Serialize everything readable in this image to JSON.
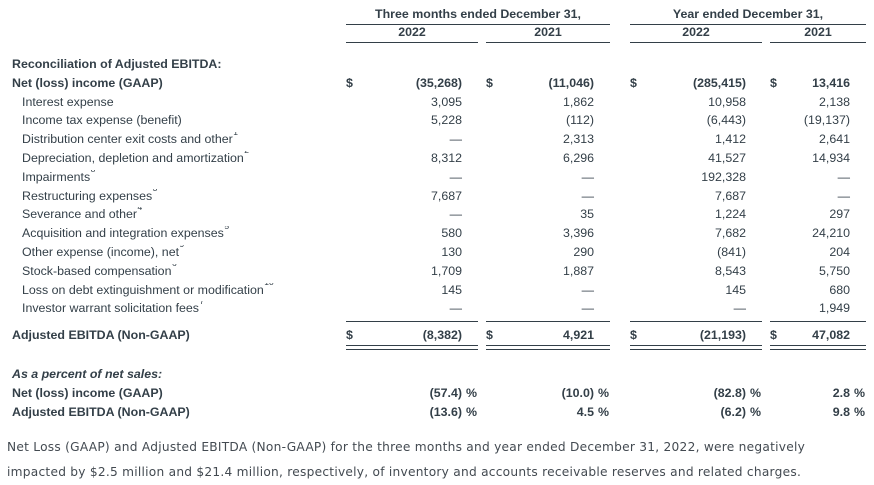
{
  "labels": {
    "dollar": "$",
    "percent": "%"
  },
  "columns": {
    "period_groups": [
      {
        "label": "Three months ended December 31,",
        "years": [
          "2022",
          "2021"
        ]
      },
      {
        "label": "Year ended December 31,",
        "years": [
          "2022",
          "2021"
        ]
      }
    ]
  },
  "table": {
    "section_header": "Reconciliation of Adjusted EBITDA:",
    "rows": [
      {
        "label": "Net (loss) income (GAAP)",
        "values": [
          "(35,268)",
          "(11,046)",
          "(285,415)",
          "13,416"
        ]
      },
      {
        "label": "Interest expense",
        "values": [
          "3,095",
          "1,862",
          "10,958",
          "2,138"
        ]
      },
      {
        "label": "Income tax expense (benefit)",
        "values": [
          "5,228",
          "(112)",
          "(6,443)",
          "(19,137)"
        ]
      },
      {
        "label": "Distribution center exit costs and other",
        "sup": "1",
        "values": [
          "—",
          "2,313",
          "1,412",
          "2,641"
        ]
      },
      {
        "label": "Depreciation, depletion and amortization",
        "sup": "2",
        "values": [
          "8,312",
          "6,296",
          "41,527",
          "14,934"
        ]
      },
      {
        "label": "Impairments",
        "sup": "8",
        "values": [
          "—",
          "—",
          "192,328",
          "—"
        ]
      },
      {
        "label": "Restructuring expenses",
        "sup": "3",
        "values": [
          "7,687",
          "—",
          "7,687",
          "—"
        ]
      },
      {
        "label": "Severance and other",
        "sup": "4",
        "values": [
          "—",
          "35",
          "1,224",
          "297"
        ]
      },
      {
        "label": "Acquisition and integration expenses",
        "sup": "5",
        "values": [
          "580",
          "3,396",
          "7,682",
          "24,210"
        ]
      },
      {
        "label": "Other expense (income), net",
        "sup": "9",
        "values": [
          "130",
          "290",
          "(841)",
          "204"
        ]
      },
      {
        "label": "Stock-based compensation",
        "sup": "6",
        "values": [
          "1,709",
          "1,887",
          "8,543",
          "5,750"
        ]
      },
      {
        "label": "Loss on debt extinguishment or modification",
        "sup": "10",
        "values": [
          "145",
          "—",
          "145",
          "680"
        ]
      },
      {
        "label": "Investor warrant solicitation fees",
        "sup": "7",
        "values": [
          "—",
          "—",
          "—",
          "1,949"
        ]
      }
    ],
    "total_row": {
      "label": "Adjusted EBITDA (Non-GAAP)",
      "values": [
        "(8,382)",
        "4,921",
        "(21,193)",
        "47,082"
      ]
    }
  },
  "percent_section": {
    "header": "As a percent of net sales:",
    "rows": [
      {
        "label": "Net (loss) income (GAAP)",
        "values": [
          "(57.4)",
          "(10.0)",
          "(82.8)",
          "2.8"
        ]
      },
      {
        "label": "Adjusted EBITDA (Non-GAAP)",
        "values": [
          "(13.6)",
          "4.5",
          "(6.2)",
          "9.8"
        ]
      }
    ]
  },
  "footnote": {
    "text": "Net Loss (GAAP) and Adjusted EBITDA (Non-GAAP) for the three months and year ended December 31, 2022, were negatively impacted by $2.5 million and $21.4 million, respectively, of inventory and accounts receivable reserves and related charges."
  }
}
